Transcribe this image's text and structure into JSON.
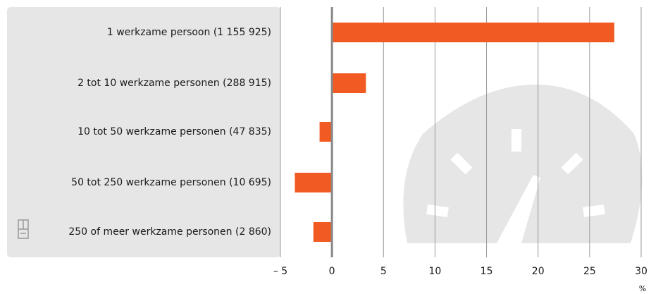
{
  "chart_data": {
    "type": "bar",
    "orientation": "horizontal",
    "categories": [
      "1 werkzame persoon (1 155 925)",
      "2 tot 10 werkzame personen (288 915)",
      "10 tot 50 werkzame personen (47 835)",
      "50 tot 250 werkzame personen (10 695)",
      "250 of meer werkzame personen (2 860)"
    ],
    "values": [
      27.4,
      3.3,
      -1.2,
      -3.6,
      -1.8
    ],
    "color": "#f15a22",
    "xlim": [
      -5,
      30
    ],
    "xticks": [
      {
        "value": -5,
        "label": "– 5"
      },
      0,
      5,
      10,
      15,
      20,
      25,
      30
    ],
    "xlabel": "%",
    "grid": true
  }
}
